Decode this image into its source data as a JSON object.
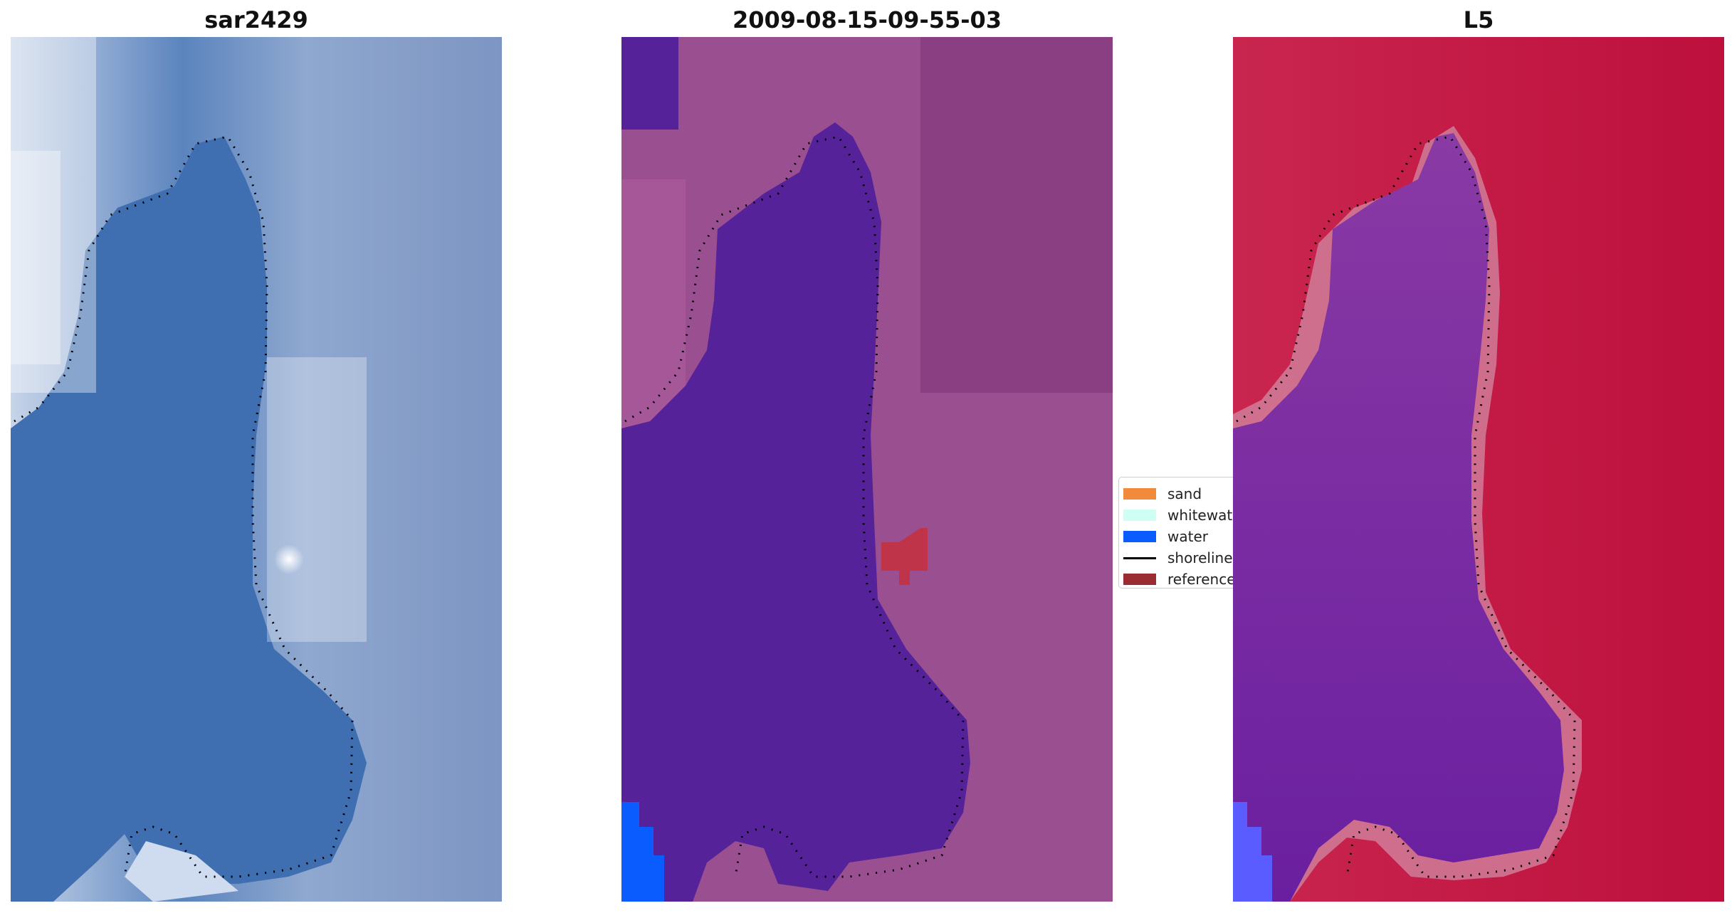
{
  "panels": {
    "left_title": "sar2429",
    "middle_title": "2009-08-15-09-55-03",
    "right_title": "L5"
  },
  "legend": {
    "items": [
      {
        "label": "sand",
        "color": "#f28a3c"
      },
      {
        "label": "whitewater",
        "color": "#cffff4"
      },
      {
        "label": "water",
        "color": "#0a5cff"
      },
      {
        "label": "shoreline",
        "color": "#000000"
      },
      {
        "label": "reference",
        "color": "#9a2c34"
      }
    ]
  },
  "colors": {
    "sar_water": "#3f6fb0",
    "sar_land": "#9fb6d8",
    "classified_water": "#55229a",
    "classified_land": "#9a4f90",
    "classified_reference": "#c0344a",
    "classified_blue_water": "#0b5cff",
    "l5_land": "#c21b43",
    "l5_water": "#7a2ba1"
  }
}
